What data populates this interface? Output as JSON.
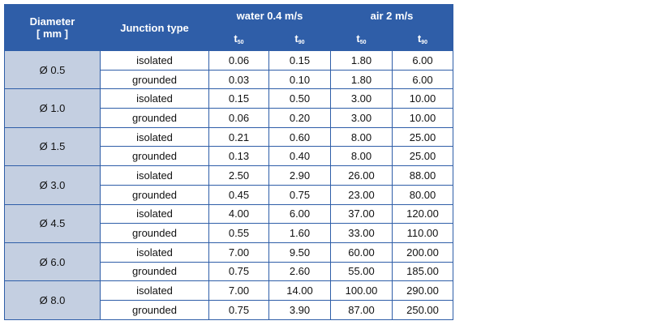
{
  "table": {
    "header": {
      "diameter": [
        "Diameter",
        "[ mm ]"
      ],
      "junction": "Junction type",
      "groups": [
        "water 0.4 m/s",
        "air 2 m/s"
      ],
      "sub": [
        {
          "base": "t",
          "sub": "50"
        },
        {
          "base": "t",
          "sub": "90"
        },
        {
          "base": "t",
          "sub": "50"
        },
        {
          "base": "t",
          "sub": "90"
        }
      ]
    },
    "groups": [
      {
        "diameter": "Ø 0.5",
        "rows": [
          [
            "isolated",
            "0.06",
            "0.15",
            "1.80",
            "6.00"
          ],
          [
            "grounded",
            "0.03",
            "0.10",
            "1.80",
            "6.00"
          ]
        ]
      },
      {
        "diameter": "Ø 1.0",
        "rows": [
          [
            "isolated",
            "0.15",
            "0.50",
            "3.00",
            "10.00"
          ],
          [
            "grounded",
            "0.06",
            "0.20",
            "3.00",
            "10.00"
          ]
        ]
      },
      {
        "diameter": "Ø 1.5",
        "rows": [
          [
            "isolated",
            "0.21",
            "0.60",
            "8.00",
            "25.00"
          ],
          [
            "grounded",
            "0.13",
            "0.40",
            "8.00",
            "25.00"
          ]
        ]
      },
      {
        "diameter": "Ø 3.0",
        "rows": [
          [
            "isolated",
            "2.50",
            "2.90",
            "26.00",
            "88.00"
          ],
          [
            "grounded",
            "0.45",
            "0.75",
            "23.00",
            "80.00"
          ]
        ]
      },
      {
        "diameter": "Ø 4.5",
        "rows": [
          [
            "isolated",
            "4.00",
            "6.00",
            "37.00",
            "120.00"
          ],
          [
            "grounded",
            "0.55",
            "1.60",
            "33.00",
            "110.00"
          ]
        ]
      },
      {
        "diameter": "Ø 6.0",
        "rows": [
          [
            "isolated",
            "7.00",
            "9.50",
            "60.00",
            "200.00"
          ],
          [
            "grounded",
            "0.75",
            "2.60",
            "55.00",
            "185.00"
          ]
        ]
      },
      {
        "diameter": "Ø 8.0",
        "rows": [
          [
            "isolated",
            "7.00",
            "14.00",
            "100.00",
            "290.00"
          ],
          [
            "grounded",
            "0.75",
            "3.90",
            "87.00",
            "250.00"
          ]
        ]
      }
    ]
  }
}
